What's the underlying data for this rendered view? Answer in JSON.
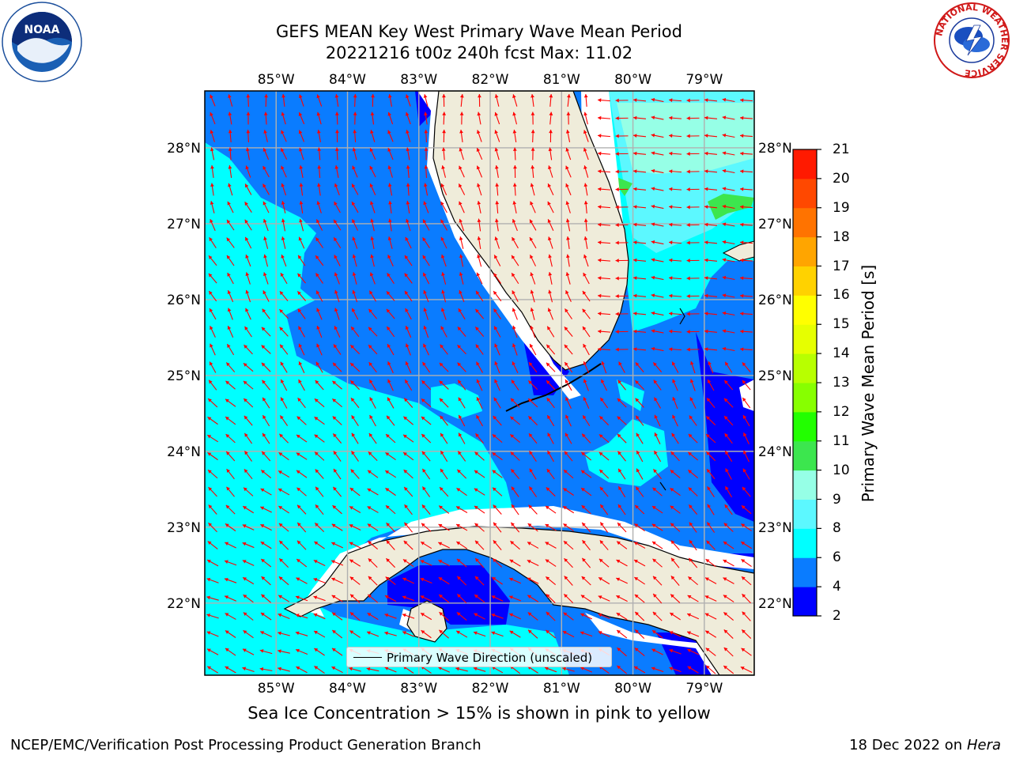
{
  "title": {
    "line1": "GEFS MEAN Key West Primary Wave Mean Period",
    "line2": "20221216 t00z 240h fcst   Max: 11.02"
  },
  "axes": {
    "lon_labels": [
      "85°W",
      "84°W",
      "83°W",
      "82°W",
      "81°W",
      "80°W",
      "79°W"
    ],
    "lat_labels": [
      "28°N",
      "27°N",
      "26°N",
      "25°N",
      "24°N",
      "23°N",
      "22°N"
    ],
    "lon_range": [
      -86.0,
      -78.3
    ],
    "lat_range": [
      21.05,
      28.75
    ]
  },
  "colorbar": {
    "label": "Primary Wave Mean Period [s]",
    "ticks": [
      "2",
      "4",
      "6",
      "8",
      "9",
      "10",
      "11",
      "12",
      "13",
      "14",
      "15",
      "16",
      "17",
      "18",
      "19",
      "20",
      "21"
    ],
    "colors": [
      "#0000ff",
      "#0a7cff",
      "#00ffff",
      "#5cf8ff",
      "#96ffe6",
      "#3ce64e",
      "#22ff00",
      "#87ff00",
      "#b8ff00",
      "#e6ff00",
      "#ffff00",
      "#ffd200",
      "#ffa500",
      "#ff7300",
      "#ff4800",
      "#ff1a00"
    ]
  },
  "legend": {
    "label": "Primary Wave Direction (unscaled)"
  },
  "ice_note": "Sea Ice Concentration > 15% is shown in pink to yellow",
  "footer": {
    "left": "NCEP/EMC/Verification Post Processing Product Generation Branch",
    "right_date": "18 Dec 2022 on",
    "right_host": "Hera"
  },
  "logos": {
    "noaa": "NOAA",
    "nws_ring": "NATIONAL WEATHER SERVICE"
  },
  "colors": {
    "land": "#efecda",
    "gridline": "#b0b0b0",
    "arrow": "#ff0000"
  },
  "icons": [
    "noaa-logo-icon",
    "nws-logo-icon"
  ]
}
